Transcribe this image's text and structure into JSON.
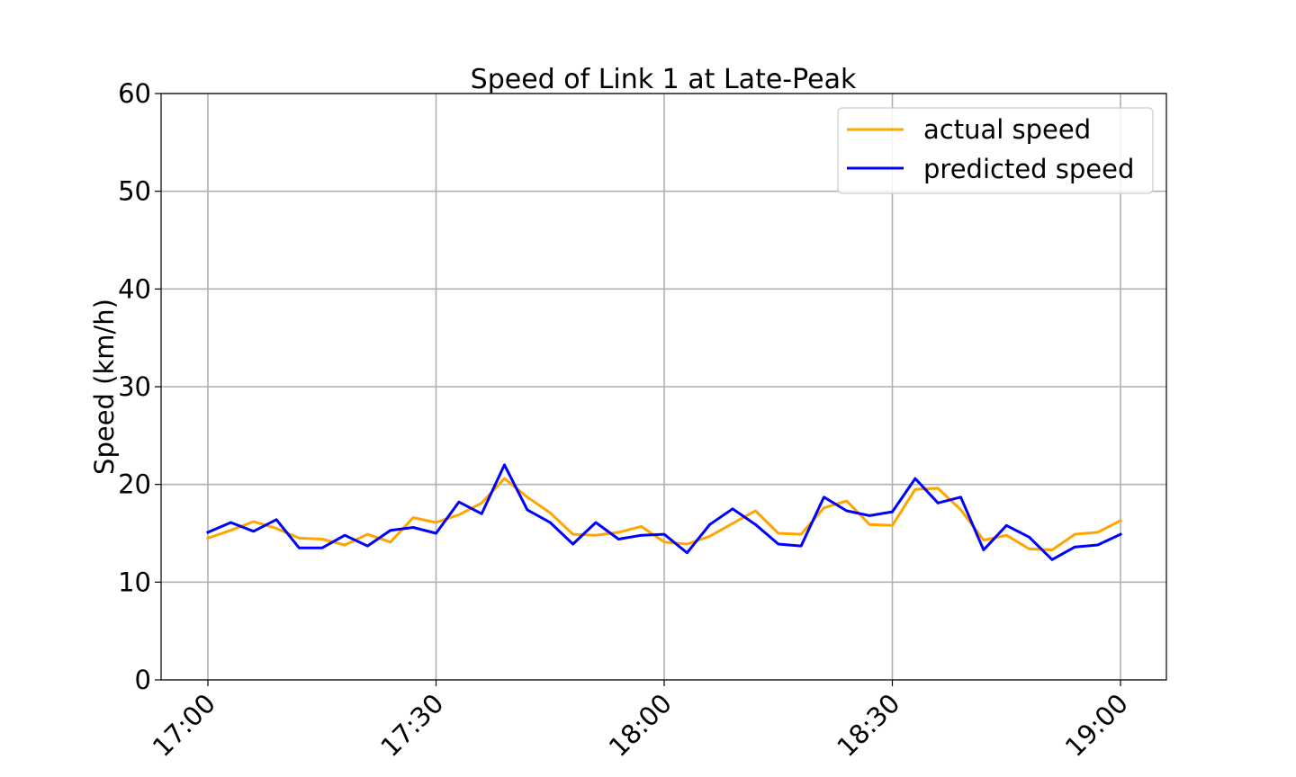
{
  "chart_data": {
    "type": "line",
    "title": "Speed of Link 1 at Late-Peak",
    "xlabel": "",
    "ylabel": "Speed (km/h)",
    "ylim": [
      0,
      60
    ],
    "yticks": [
      "0",
      "10",
      "20",
      "30",
      "40",
      "50",
      "60"
    ],
    "xticks": [
      "17:00",
      "17:30",
      "18:00",
      "18:30",
      "19:00"
    ],
    "grid": true,
    "legend_position": "top-right",
    "x": [
      "17:00",
      "17:03",
      "17:06",
      "17:09",
      "17:12",
      "17:15",
      "17:18",
      "17:21",
      "17:24",
      "17:27",
      "17:30",
      "17:33",
      "17:36",
      "17:39",
      "17:42",
      "17:45",
      "17:48",
      "17:51",
      "17:54",
      "17:57",
      "18:00",
      "18:03",
      "18:06",
      "18:09",
      "18:12",
      "18:15",
      "18:18",
      "18:21",
      "18:24",
      "18:27",
      "18:30",
      "18:33",
      "18:36",
      "18:39",
      "18:42",
      "18:45",
      "18:48",
      "18:51",
      "18:54",
      "18:57",
      "19:00"
    ],
    "series": [
      {
        "name": "actual speed",
        "color": "#FFA500",
        "values": [
          14.5,
          15.3,
          16.2,
          15.5,
          14.5,
          14.4,
          13.8,
          14.9,
          14.1,
          16.6,
          16.1,
          16.9,
          18.1,
          20.6,
          18.7,
          17.1,
          14.9,
          14.8,
          15.1,
          15.7,
          14.1,
          13.9,
          14.7,
          16.0,
          17.3,
          15.0,
          14.9,
          17.6,
          18.3,
          15.9,
          15.8,
          19.5,
          19.6,
          17.4,
          14.3,
          14.8,
          13.4,
          13.3,
          14.9,
          15.1,
          16.3
        ]
      },
      {
        "name": "predicted speed",
        "color": "#0000FF",
        "values": [
          15.1,
          16.1,
          15.2,
          16.4,
          13.5,
          13.5,
          14.8,
          13.7,
          15.3,
          15.6,
          15.0,
          18.2,
          17.0,
          22.0,
          17.4,
          16.1,
          13.9,
          16.1,
          14.4,
          14.8,
          14.9,
          13.0,
          15.9,
          17.5,
          15.9,
          13.9,
          13.7,
          18.7,
          17.3,
          16.8,
          17.2,
          20.6,
          18.1,
          18.7,
          13.3,
          15.8,
          14.6,
          12.3,
          13.6,
          13.8,
          14.9
        ]
      }
    ]
  }
}
